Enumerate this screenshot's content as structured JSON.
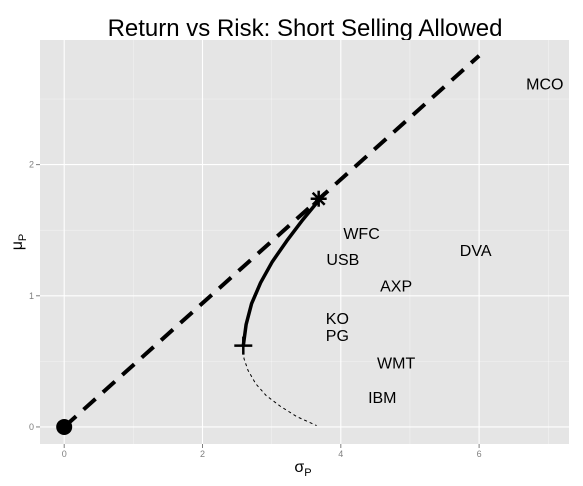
{
  "chart_data": {
    "type": "scatter",
    "title": "Return vs Risk: Short Selling Allowed",
    "xlabel": {
      "base": "σ",
      "sub": "P"
    },
    "ylabel": {
      "base": "μ",
      "sub": "P"
    },
    "xlim": [
      -0.35,
      7.3
    ],
    "ylim": [
      -0.13,
      2.95
    ],
    "x_ticks": [
      0,
      2,
      4,
      6
    ],
    "y_ticks": [
      0,
      1,
      2
    ],
    "grid": true,
    "background": "#e5e5e5",
    "grid_color": "#ffffff",
    "stocks": [
      {
        "label": "MCO",
        "x": 6.95,
        "y": 2.62
      },
      {
        "label": "WFC",
        "x": 4.3,
        "y": 1.48
      },
      {
        "label": "DVA",
        "x": 5.95,
        "y": 1.35
      },
      {
        "label": "USB",
        "x": 4.03,
        "y": 1.28
      },
      {
        "label": "AXP",
        "x": 4.8,
        "y": 1.08
      },
      {
        "label": "KO",
        "x": 3.95,
        "y": 0.83
      },
      {
        "label": "PG",
        "x": 3.95,
        "y": 0.7
      },
      {
        "label": "WMT",
        "x": 4.8,
        "y": 0.49
      },
      {
        "label": "IBM",
        "x": 4.6,
        "y": 0.23
      }
    ],
    "risk_free_point": {
      "x": 0,
      "y": 0
    },
    "capital_market_line": {
      "x": [
        0,
        6.0
      ],
      "y": [
        0,
        2.83
      ]
    },
    "efficient_frontier": {
      "x": [
        3.7,
        3.45,
        3.22,
        3.01,
        2.84,
        2.71,
        2.63,
        2.59
      ],
      "y": [
        1.74,
        1.58,
        1.42,
        1.26,
        1.1,
        0.94,
        0.78,
        0.62
      ]
    },
    "inefficient_frontier": {
      "x": [
        2.59,
        2.6,
        2.66,
        2.77,
        2.92,
        3.12,
        3.36,
        3.65
      ],
      "y": [
        0.62,
        0.52,
        0.43,
        0.33,
        0.24,
        0.16,
        0.08,
        0.01
      ]
    },
    "tangency_point": {
      "x": 3.68,
      "y": 1.74
    },
    "min_variance_point": {
      "x": 2.59,
      "y": 0.62
    }
  }
}
